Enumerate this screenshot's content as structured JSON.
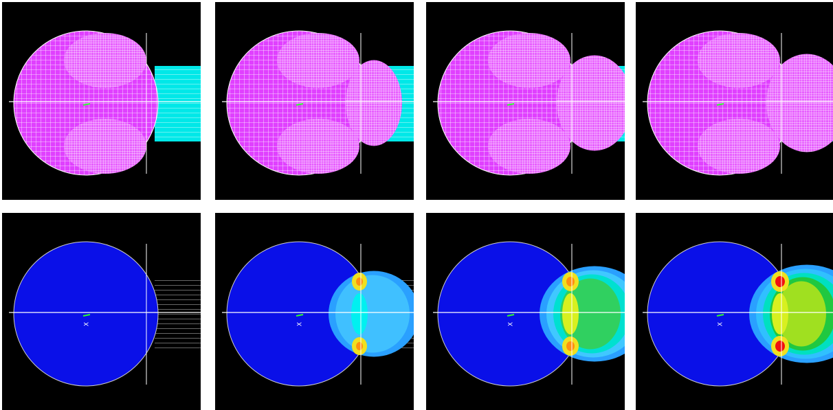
{
  "axis_label": "X"
}
